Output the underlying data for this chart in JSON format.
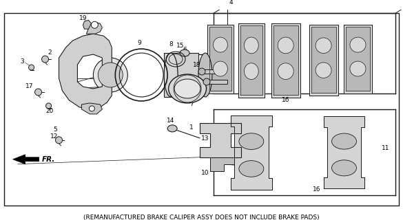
{
  "background_color": "#ffffff",
  "caption": "(REMANUFACTURED BRAKE CALIPER ASSY DOES NOT INCLUDE BRAKE PADS)",
  "caption_fontsize": 6.5,
  "fig_width": 5.85,
  "fig_height": 3.2,
  "dpi": 100,
  "line_color": "#1a1a1a",
  "text_color": "#000000",
  "gray_fill": "#c8c8c8",
  "light_gray": "#e0e0e0",
  "white": "#ffffff",
  "font_size_labels": 6.5
}
